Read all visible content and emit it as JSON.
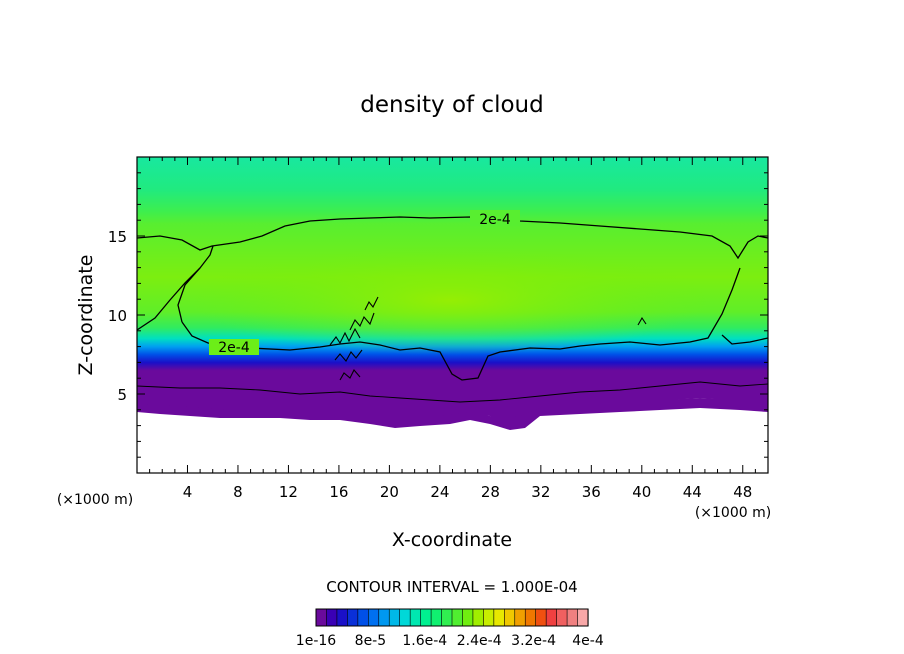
{
  "chart_data": {
    "type": "heatmap",
    "title": "density of cloud",
    "xlabel": "X-coordinate",
    "ylabel": "Z-coordinate",
    "x_unit_left": "(×1000 m)",
    "x_unit_right": "(×1000 m)",
    "xlim": [
      0,
      50
    ],
    "ylim": [
      0,
      20
    ],
    "xticks": [
      4,
      8,
      12,
      16,
      20,
      24,
      28,
      32,
      36,
      40,
      44,
      48
    ],
    "yticks": [
      5,
      10,
      15
    ],
    "contour_label": "2e-4",
    "contour_interval_text": "CONTOUR INTERVAL = 1.000E-04",
    "colorbar": {
      "colors": [
        "#6a0a9c",
        "#3a00b5",
        "#1a10c8",
        "#0a30d8",
        "#0050e8",
        "#0070f0",
        "#0098f0",
        "#00b8e8",
        "#00d8d8",
        "#00e8b0",
        "#00f090",
        "#10f070",
        "#30ee50",
        "#50ee30",
        "#70ee10",
        "#a0ee00",
        "#c8ee00",
        "#e8e800",
        "#f0c800",
        "#f0a000",
        "#f07800",
        "#f05010",
        "#f04040",
        "#f06060",
        "#f08080",
        "#f8a8a8"
      ],
      "tick_labels": [
        "1e-16",
        "8e-5",
        "1.6e-4",
        "2.4e-4",
        "3.2e-4",
        "4e-4"
      ]
    }
  }
}
